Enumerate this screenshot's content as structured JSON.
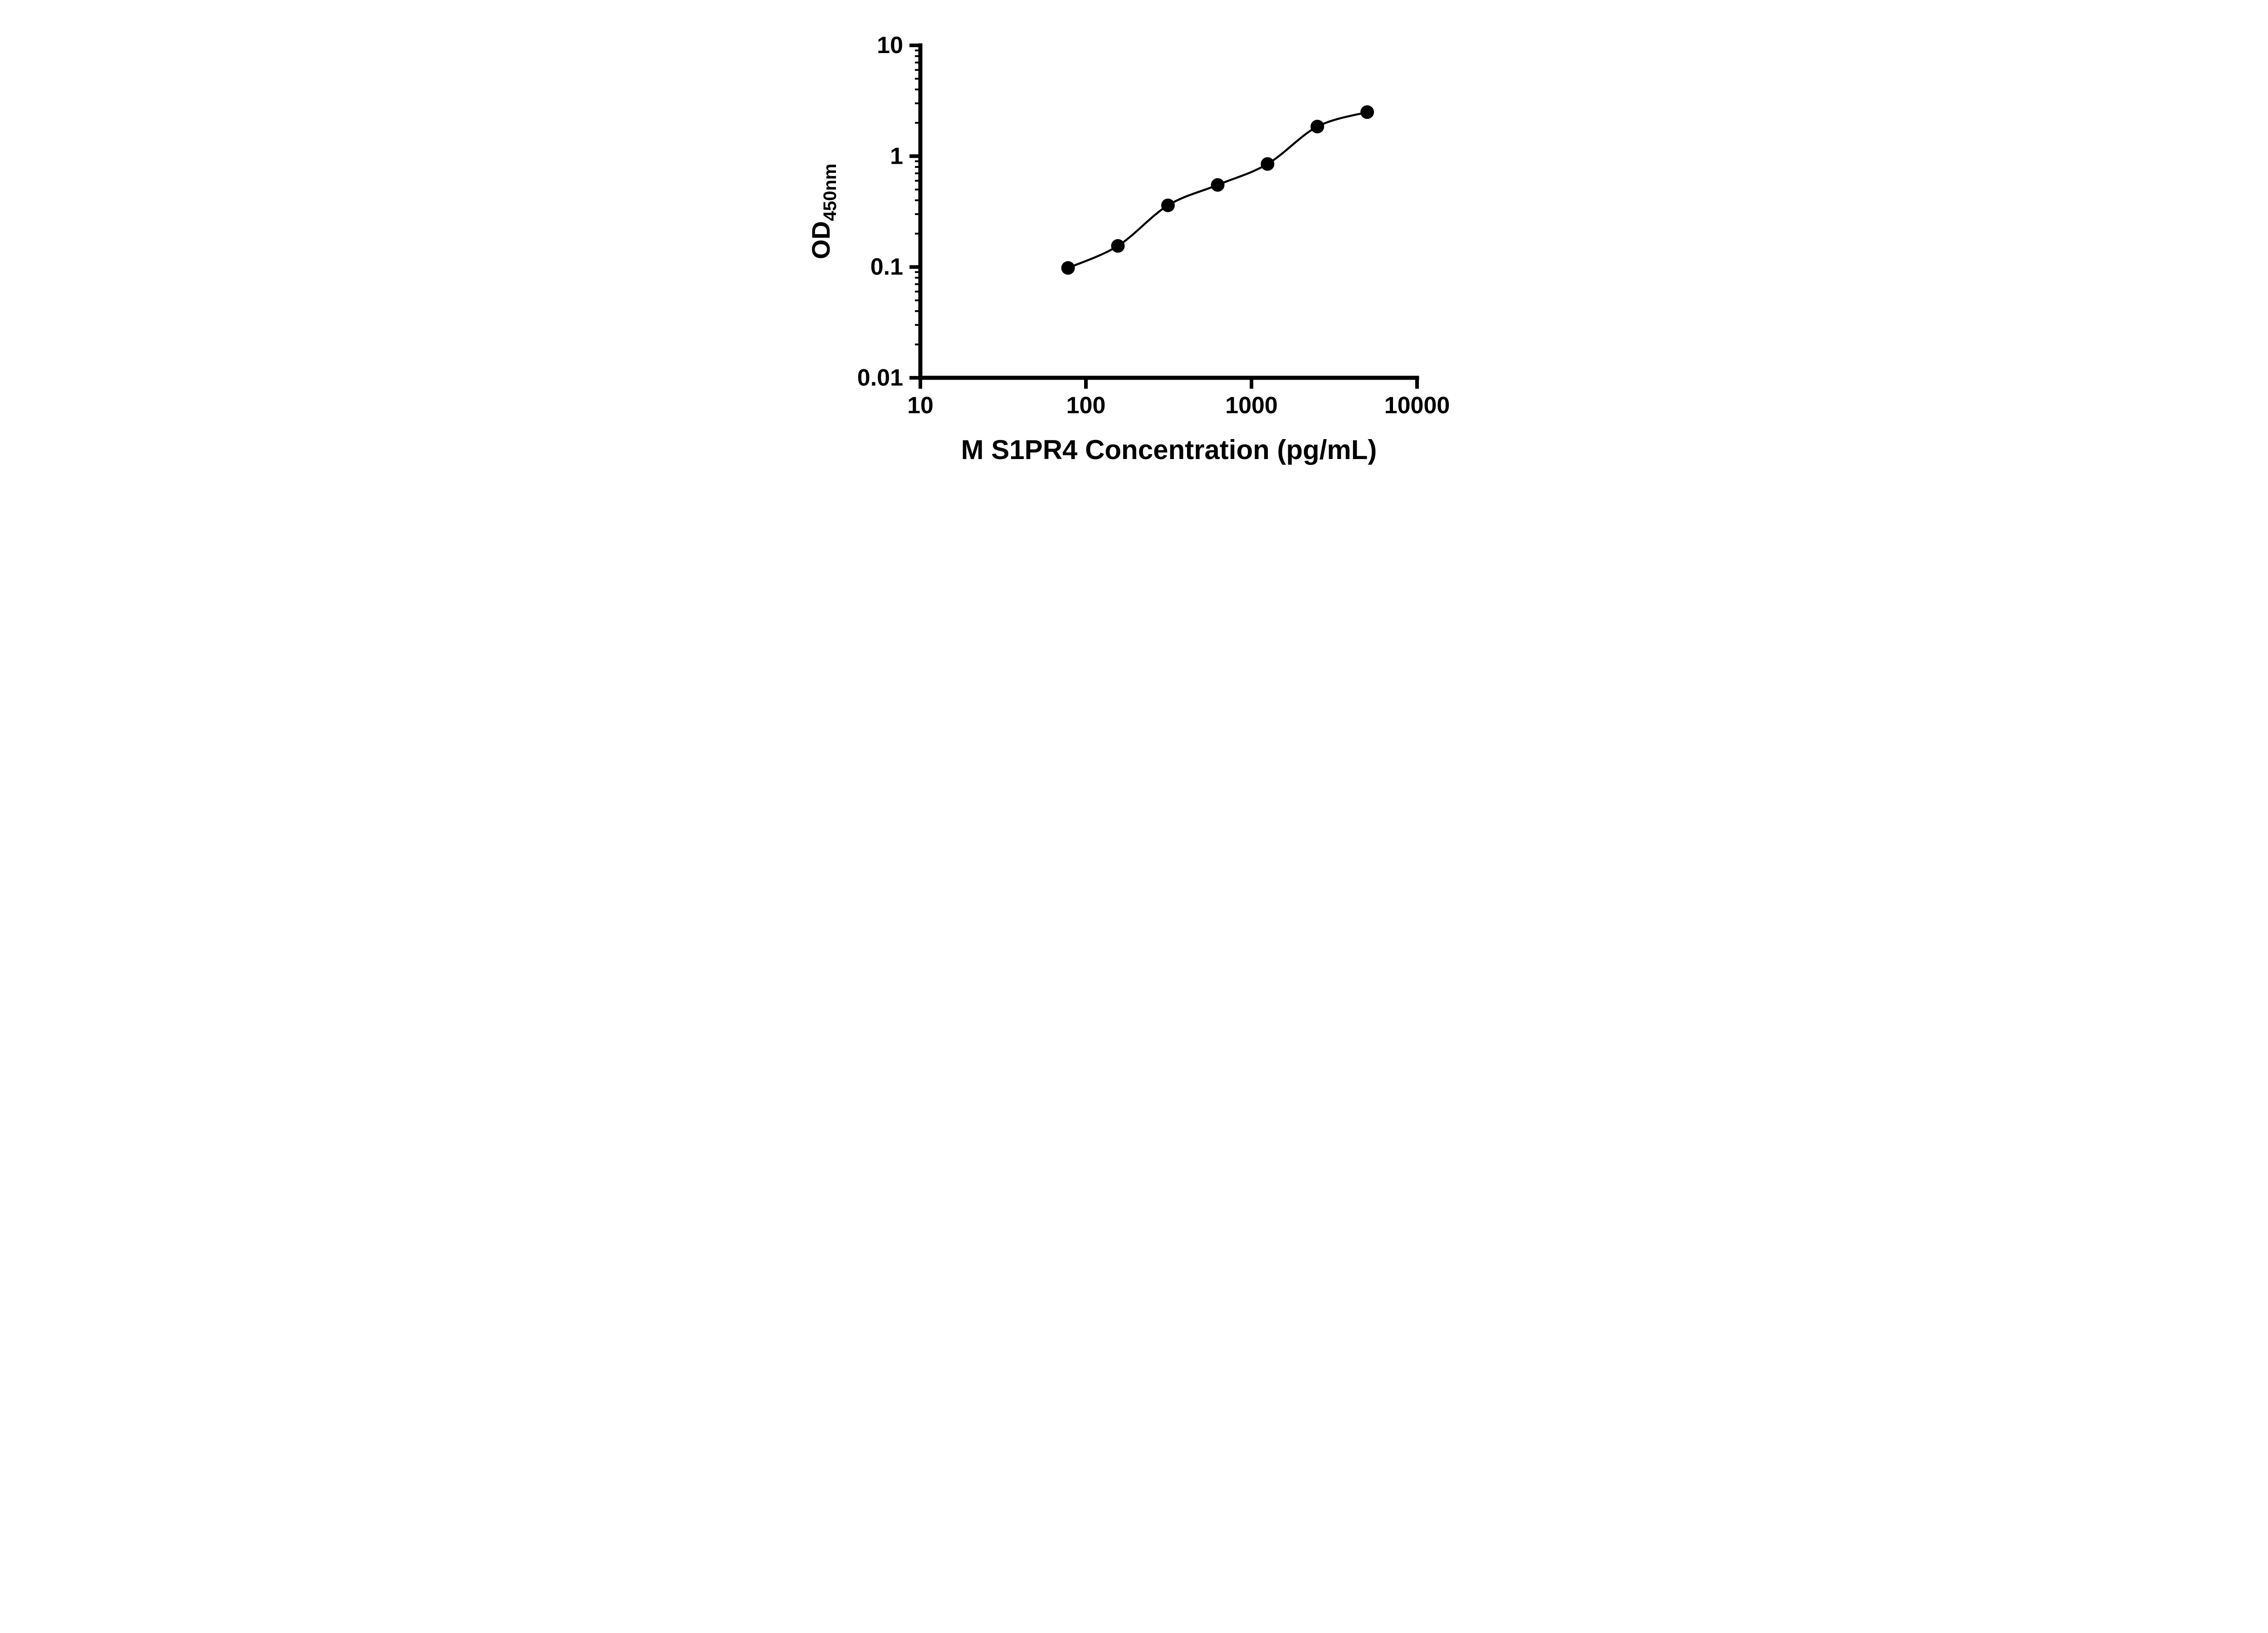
{
  "figure": {
    "background": "#ffffff"
  },
  "chart_data": {
    "type": "scatter",
    "title": "",
    "xlabel": "M S1PR4 Concentration (pg/mL)",
    "ylabel_main": "OD",
    "ylabel_sub": "450nm",
    "x_scale": "log",
    "y_scale": "log",
    "xlim": [
      10,
      10000
    ],
    "ylim": [
      0.01,
      10
    ],
    "x_tick_labels": [
      "10",
      "100",
      "1000",
      "10000"
    ],
    "x_tick_values": [
      10,
      100,
      1000,
      10000
    ],
    "y_tick_labels": [
      "0.01",
      "0.1",
      "1",
      "10"
    ],
    "y_tick_values": [
      0.01,
      0.1,
      1,
      10
    ],
    "grid": false,
    "legend": "none",
    "curve_type": "smooth sigmoidal fit through points",
    "points": [
      {
        "x": 78,
        "y": 0.098
      },
      {
        "x": 156,
        "y": 0.155
      },
      {
        "x": 313,
        "y": 0.36
      },
      {
        "x": 625,
        "y": 0.55
      },
      {
        "x": 1250,
        "y": 0.85
      },
      {
        "x": 2500,
        "y": 1.85
      },
      {
        "x": 5000,
        "y": 2.5
      }
    ],
    "colors": {
      "axis": "#000000",
      "points": "#000000",
      "curve": "#000000",
      "text": "#000000"
    }
  }
}
